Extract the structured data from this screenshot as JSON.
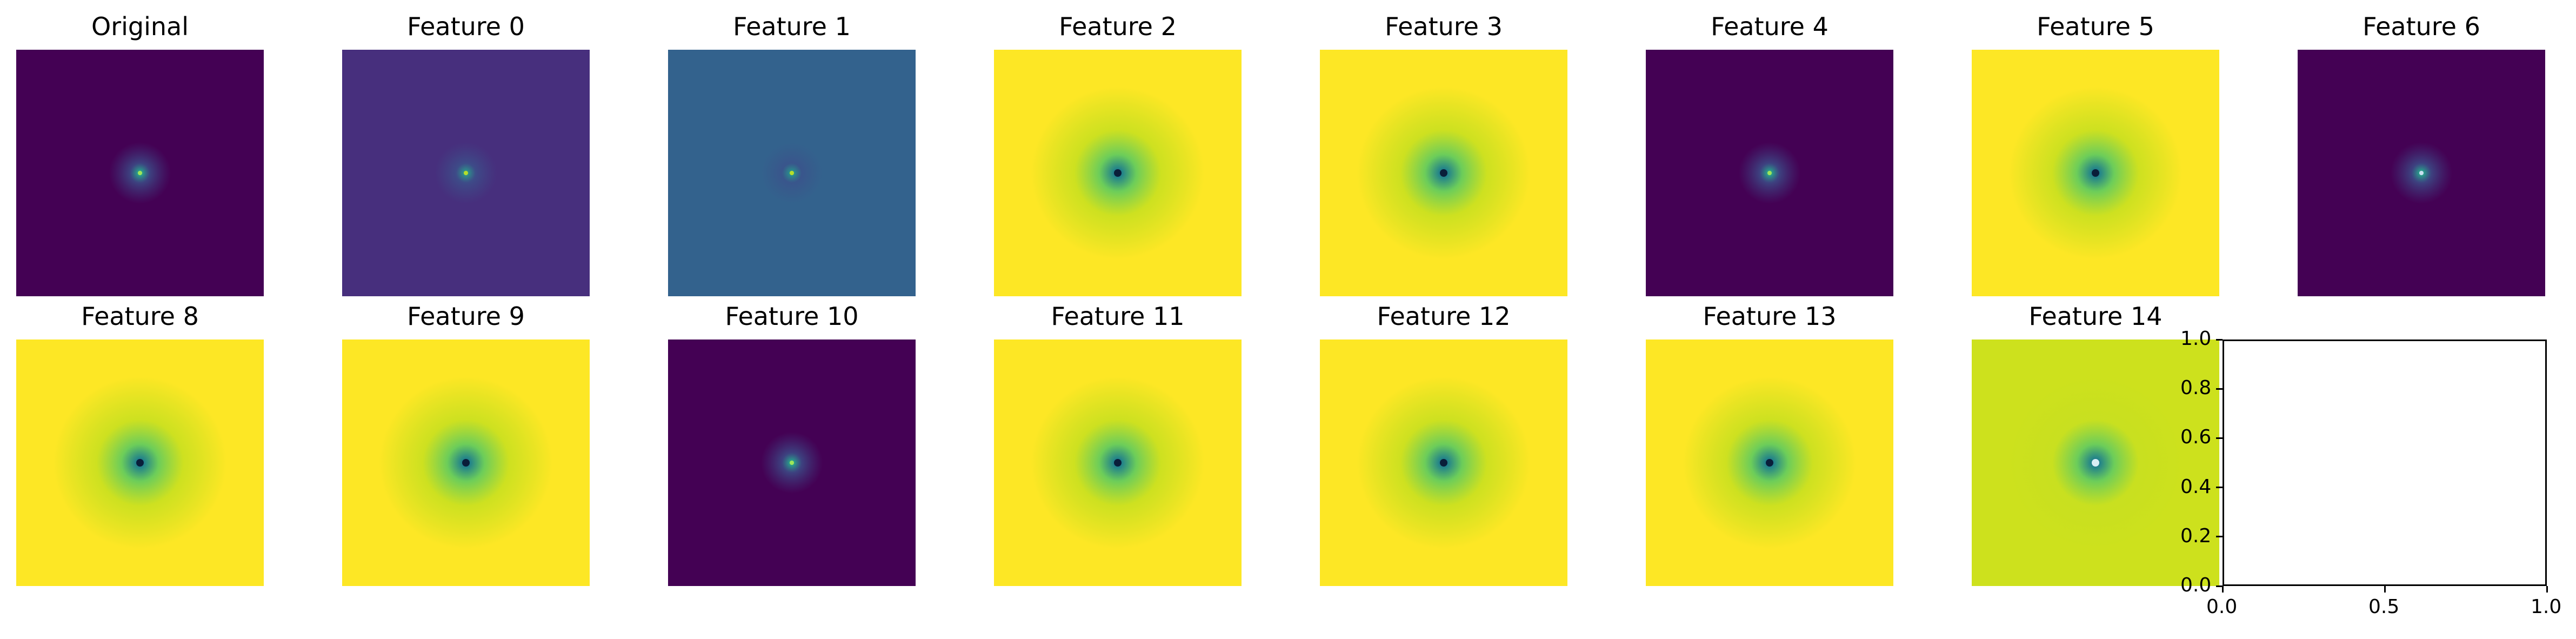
{
  "figure": {
    "panels": [
      {
        "title": "Original",
        "fill": "#440154",
        "core": "#2a9a8a",
        "center": "#9ee65a",
        "mode": "dark"
      },
      {
        "title": "Feature 0",
        "fill": "#472f7d",
        "core": "#2e8f8a",
        "center": "#b5de2b",
        "mode": "dark"
      },
      {
        "title": "Feature 1",
        "fill": "#33628d",
        "core": "#2a8c8c",
        "center": "#b5de2b",
        "mode": "dark"
      },
      {
        "title": "Feature 2",
        "fill": "#fde725",
        "core": "#1f7f8c",
        "center": "#0a1e3a",
        "mode": "bright"
      },
      {
        "title": "Feature 3",
        "fill": "#fde725",
        "core": "#1f7f8c",
        "center": "#0a1e3a",
        "mode": "bright"
      },
      {
        "title": "Feature 4",
        "fill": "#440154",
        "core": "#2a9a8a",
        "center": "#9ee65a",
        "mode": "dark"
      },
      {
        "title": "Feature 5",
        "fill": "#fde725",
        "core": "#1f7f8c",
        "center": "#0a1e3a",
        "mode": "bright"
      },
      {
        "title": "Feature 6",
        "fill": "#440154",
        "core": "#2a9a8a",
        "center": "#c8e0f0",
        "mode": "dark"
      },
      {
        "title": "Feature 8",
        "fill": "#fde725",
        "core": "#1f7f8c",
        "center": "#0a1e3a",
        "mode": "bright"
      },
      {
        "title": "Feature 9",
        "fill": "#fde725",
        "core": "#1f7f8c",
        "center": "#0a1e3a",
        "mode": "bright"
      },
      {
        "title": "Feature 10",
        "fill": "#440154",
        "core": "#2a9a8a",
        "center": "#9ee65a",
        "mode": "dark"
      },
      {
        "title": "Feature 11",
        "fill": "#fde725",
        "core": "#1f7f8c",
        "center": "#0a1e3a",
        "mode": "bright"
      },
      {
        "title": "Feature 12",
        "fill": "#fde725",
        "core": "#1f7f8c",
        "center": "#0a1e3a",
        "mode": "bright"
      },
      {
        "title": "Feature 13",
        "fill": "#fde725",
        "core": "#1f7f8c",
        "center": "#0a1e3a",
        "mode": "bright"
      },
      {
        "title": "Feature 14",
        "fill": "#cde11d",
        "core": "#1f7f8c",
        "center": "#d8eef5",
        "mode": "bright"
      }
    ],
    "empty_axes": {
      "xticks": [
        "0.0",
        "0.5",
        "1.0"
      ],
      "yticks": [
        "0.0",
        "0.2",
        "0.4",
        "0.6",
        "0.8",
        "1.0"
      ]
    }
  },
  "chart_data": {
    "type": "heatmap",
    "grid": {
      "rows": 2,
      "cols": 8
    },
    "colormap": "viridis",
    "axes_visible": false,
    "panel_titles": [
      "Original",
      "Feature 0",
      "Feature 1",
      "Feature 2",
      "Feature 3",
      "Feature 4",
      "Feature 5",
      "Feature 6",
      "Feature 8",
      "Feature 9",
      "Feature 10",
      "Feature 11",
      "Feature 12",
      "Feature 13",
      "Feature 14"
    ],
    "empty_panel": {
      "xlim": [
        0,
        1
      ],
      "ylim": [
        0,
        1
      ],
      "xticks": [
        0.0,
        0.5,
        1.0
      ],
      "yticks": [
        0.0,
        0.2,
        0.4,
        0.6,
        0.8,
        1.0
      ]
    }
  }
}
